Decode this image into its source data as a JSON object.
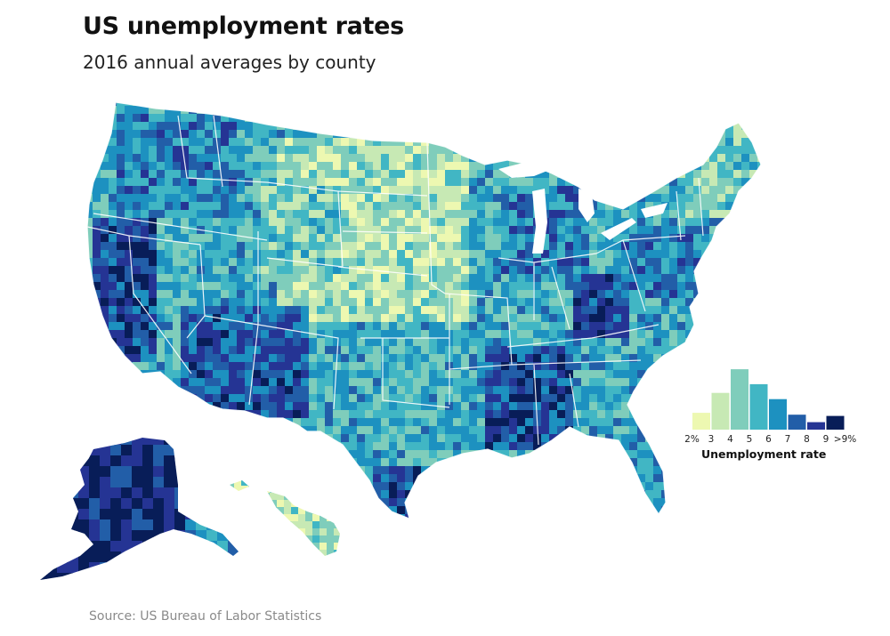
{
  "header": {
    "title": "US unemployment rates",
    "subtitle": "2016 annual averages by county"
  },
  "footer": {
    "source": "Source: US Bureau of Labor Statistics"
  },
  "legend": {
    "title": "Unemployment rate",
    "tick_labels": [
      "2%",
      "3",
      "4",
      "5",
      "6",
      "7",
      "8",
      "9",
      ">9%"
    ],
    "bins": [
      {
        "range": "2-3",
        "relative_count": 0.27,
        "color": "#edf8b1"
      },
      {
        "range": "3-4",
        "relative_count": 0.59,
        "color": "#c7e9b4"
      },
      {
        "range": "4-5",
        "relative_count": 0.97,
        "color": "#7fcdbb"
      },
      {
        "range": "5-6",
        "relative_count": 0.73,
        "color": "#41b6c4"
      },
      {
        "range": "6-7",
        "relative_count": 0.49,
        "color": "#1d91c0"
      },
      {
        "range": "7-8",
        "relative_count": 0.24,
        "color": "#225ea8"
      },
      {
        "range": "8-9",
        "relative_count": 0.12,
        "color": "#253494"
      },
      {
        "range": ">9",
        "relative_count": 0.22,
        "color": "#081d58"
      }
    ]
  },
  "colors": {
    "state_border": "#ffffff",
    "background": "#ffffff"
  }
}
